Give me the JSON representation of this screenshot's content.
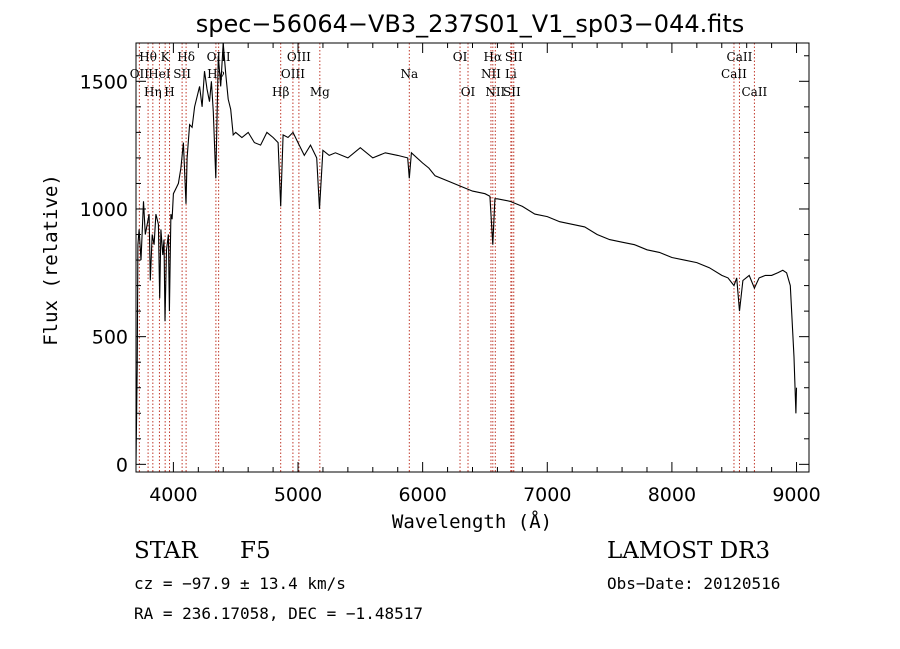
{
  "chart_data": {
    "type": "line",
    "title": "spec−56064−VB3_237S01_V1_sp03−044.fits",
    "xlabel": "Wavelength (Å)",
    "ylabel": "Flux (relative)",
    "xlim": [
      3700,
      9100
    ],
    "ylim": [
      -30,
      1650
    ],
    "xticks": [
      4000,
      5000,
      6000,
      7000,
      8000,
      9000
    ],
    "yticks": [
      0,
      500,
      1000,
      1500
    ],
    "grid": false,
    "series": [
      {
        "name": "flux",
        "color": "#000000",
        "x": [
          3700,
          3710,
          3715,
          3725,
          3740,
          3760,
          3775,
          3790,
          3805,
          3815,
          3830,
          3845,
          3860,
          3880,
          3890,
          3900,
          3915,
          3925,
          3933,
          3945,
          3960,
          3968,
          3980,
          3990,
          4000,
          4020,
          4040,
          4060,
          4080,
          4101,
          4110,
          4130,
          4150,
          4170,
          4190,
          4210,
          4230,
          4250,
          4270,
          4290,
          4305,
          4320,
          4340,
          4360,
          4380,
          4400,
          4420,
          4440,
          4460,
          4480,
          4500,
          4550,
          4600,
          4650,
          4700,
          4750,
          4800,
          4840,
          4861,
          4880,
          4920,
          4960,
          5000,
          5050,
          5100,
          5150,
          5172,
          5200,
          5250,
          5300,
          5400,
          5500,
          5600,
          5700,
          5800,
          5880,
          5893,
          5910,
          6000,
          6050,
          6100,
          6200,
          6300,
          6400,
          6500,
          6540,
          6563,
          6580,
          6600,
          6700,
          6800,
          6900,
          7000,
          7100,
          7200,
          7300,
          7400,
          7500,
          7600,
          7700,
          7800,
          7900,
          8000,
          8100,
          8200,
          8300,
          8400,
          8450,
          8498,
          8520,
          8542,
          8570,
          8620,
          8662,
          8700,
          8750,
          8800,
          8850,
          8890,
          8920,
          8950,
          8980,
          8995,
          9000
        ],
        "y": [
          0,
          380,
          860,
          920,
          800,
          1030,
          900,
          940,
          980,
          720,
          900,
          860,
          980,
          940,
          650,
          920,
          820,
          880,
          560,
          840,
          900,
          600,
          980,
          960,
          1060,
          1080,
          1100,
          1160,
          1260,
          1020,
          1200,
          1330,
          1320,
          1400,
          1440,
          1480,
          1400,
          1540,
          1470,
          1420,
          1500,
          1380,
          1120,
          1600,
          1480,
          1650,
          1530,
          1430,
          1390,
          1290,
          1300,
          1280,
          1300,
          1260,
          1250,
          1300,
          1280,
          1260,
          1010,
          1290,
          1280,
          1300,
          1260,
          1210,
          1250,
          1200,
          1000,
          1230,
          1210,
          1220,
          1200,
          1240,
          1200,
          1220,
          1210,
          1200,
          1120,
          1220,
          1180,
          1160,
          1130,
          1110,
          1090,
          1070,
          1060,
          1050,
          860,
          1040,
          1040,
          1030,
          1010,
          980,
          970,
          950,
          940,
          930,
          900,
          880,
          870,
          860,
          840,
          830,
          810,
          800,
          790,
          770,
          740,
          730,
          700,
          730,
          600,
          720,
          740,
          690,
          730,
          740,
          740,
          750,
          760,
          750,
          700,
          420,
          200,
          300
        ]
      }
    ],
    "spectral_lines": [
      {
        "label": "OII",
        "x": 3727,
        "row": 2
      },
      {
        "label": "Hθ",
        "x": 3797,
        "row": 1
      },
      {
        "label": "Hη",
        "x": 3835,
        "row": 3
      },
      {
        "label": "HeI",
        "x": 3888,
        "row": 2
      },
      {
        "label": "K",
        "x": 3934,
        "row": 1
      },
      {
        "label": "H",
        "x": 3969,
        "row": 3
      },
      {
        "label": "SII",
        "x": 4070,
        "row": 2
      },
      {
        "label": "Hδ",
        "x": 4102,
        "row": 1
      },
      {
        "label": "Hγ",
        "x": 4341,
        "row": 2
      },
      {
        "label": "OIII",
        "x": 4363,
        "row": 1
      },
      {
        "label": "Hβ",
        "x": 4861,
        "row": 3
      },
      {
        "label": "OIII",
        "x": 4959,
        "row": 2
      },
      {
        "label": "OIII",
        "x": 5007,
        "row": 1
      },
      {
        "label": "Mg",
        "x": 5175,
        "row": 3
      },
      {
        "label": "Na",
        "x": 5893,
        "row": 2
      },
      {
        "label": "OI",
        "x": 6300,
        "row": 1
      },
      {
        "label": "OI",
        "x": 6364,
        "row": 3
      },
      {
        "label": "NII",
        "x": 6548,
        "row": 2
      },
      {
        "label": "Hα",
        "x": 6563,
        "row": 1
      },
      {
        "label": "NII",
        "x": 6583,
        "row": 3
      },
      {
        "label": "Li",
        "x": 6708,
        "row": 2
      },
      {
        "label": "SII",
        "x": 6716,
        "row": 3
      },
      {
        "label": "SII",
        "x": 6731,
        "row": 1
      },
      {
        "label": "CaII",
        "x": 8498,
        "row": 2
      },
      {
        "label": "CaII",
        "x": 8542,
        "row": 1
      },
      {
        "label": "CaII",
        "x": 8662,
        "row": 3
      }
    ]
  },
  "footer": {
    "object_class": "STAR",
    "subclass": "F5",
    "survey": "LAMOST DR3",
    "cz": "cz = −97.9 ± 13.4 km/s",
    "obs_date": "Obs−Date: 20120516",
    "coords": "RA = 236.17058, DEC =  −1.48517"
  }
}
